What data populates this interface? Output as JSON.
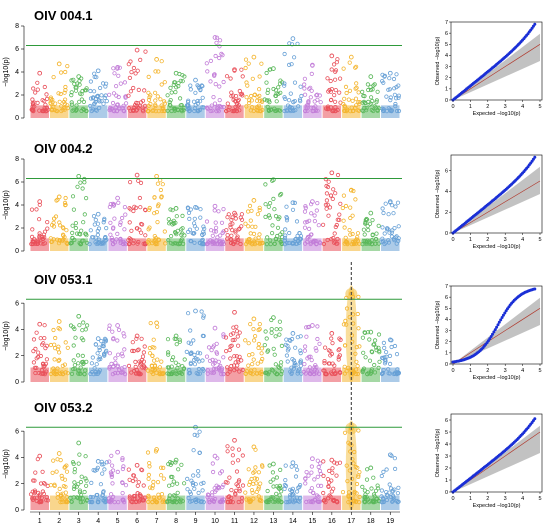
{
  "figure": {
    "panels": [
      {
        "title": "OIV 004.1",
        "ylabel": "−log10(p)",
        "yticks": [
          0,
          2,
          4,
          6,
          8
        ],
        "threshold": 6.3,
        "chrom_peaks": [
          3.9,
          4.7,
          3.6,
          4.1,
          4.4,
          5.9,
          5.1,
          3.9,
          3.3,
          7.0,
          4.2,
          5.3,
          4.3,
          6.9,
          4.6,
          5.4,
          5.3,
          3.6,
          3.9
        ],
        "highlight": null,
        "qq": {
          "max_expected": 4.7,
          "max_observed": 7.0,
          "ylim": [
            0,
            7
          ],
          "yticks": [
            0,
            1,
            2,
            3,
            4,
            5,
            6,
            7
          ],
          "shape": "linear"
        }
      },
      {
        "title": "OIV 004.2",
        "ylabel": "−log10(p)",
        "yticks": [
          0,
          2,
          4,
          6,
          8
        ],
        "threshold": 6.3,
        "chrom_peaks": [
          4.3,
          4.7,
          6.5,
          3.2,
          4.6,
          6.6,
          6.5,
          3.7,
          3.8,
          3.9,
          3.3,
          4.4,
          6.2,
          4.2,
          4.3,
          6.8,
          5.3,
          3.3,
          4.3
        ],
        "highlight": null,
        "qq": {
          "max_expected": 4.7,
          "max_observed": 7.5,
          "ylim": [
            0,
            7.5
          ],
          "yticks": [
            0,
            2,
            4,
            6
          ],
          "shape": "linear"
        }
      },
      {
        "title": "OIV 053.1",
        "ylabel": "−log10(p)",
        "yticks": [
          0,
          2,
          4,
          6
        ],
        "threshold": 6.3,
        "chrom_peaks": [
          4.4,
          4.6,
          5.0,
          3.3,
          4.3,
          3.5,
          4.5,
          3.5,
          5.4,
          4.1,
          5.3,
          4.8,
          4.9,
          3.7,
          4.3,
          3.7,
          6.7,
          3.8,
          3.2
        ],
        "highlight": 17,
        "qq": {
          "max_expected": 4.7,
          "max_observed": 7.0,
          "ylim": [
            0,
            7
          ],
          "yticks": [
            0,
            1,
            2,
            3,
            4,
            5,
            6,
            7
          ],
          "shape": "s-curve"
        }
      },
      {
        "title": "OIV 053.2",
        "ylabel": "−log10(p)",
        "yticks": [
          0,
          2,
          4,
          6
        ],
        "threshold": 6.3,
        "chrom_peaks": [
          4.1,
          4.3,
          5.1,
          3.7,
          4.4,
          3.4,
          4.6,
          3.8,
          6.3,
          4.1,
          5.3,
          4.8,
          3.5,
          3.6,
          3.9,
          3.8,
          6.2,
          3.2,
          4.2
        ],
        "highlight": 17,
        "qq": {
          "max_expected": 4.7,
          "max_observed": 6.3,
          "ylim": [
            0,
            6.5
          ],
          "yticks": [
            0,
            1,
            2,
            3,
            4,
            5,
            6
          ],
          "shape": "linear"
        }
      }
    ],
    "chromosomes": [
      "1",
      "2",
      "3",
      "4",
      "5",
      "6",
      "7",
      "8",
      "9",
      "10",
      "11",
      "12",
      "13",
      "14",
      "15",
      "16",
      "17",
      "18",
      "19"
    ],
    "qq_xticks": [
      0,
      1,
      2,
      3,
      4,
      5
    ],
    "qq_xlabel": "Expected −log10(p)",
    "qq_ylabel": "Observed −log10(p)",
    "colors": {
      "chromosomes": [
        "#e9505a",
        "#f4b52f",
        "#5bb85b",
        "#67a0d6",
        "#c27dd8",
        "#e9505a",
        "#f4b52f",
        "#5bb85b",
        "#67a0d6",
        "#c27dd8",
        "#e9505a",
        "#f4b52f",
        "#5bb85b",
        "#67a0d6",
        "#c27dd8",
        "#e9505a",
        "#f4b52f",
        "#5bb85b",
        "#67a0d6"
      ],
      "threshold": "#2e9a3a",
      "highlight": "#f4c24a",
      "qq_points": "#1a2fd6",
      "qq_line": "#b03a2e",
      "qq_band": "#9a9a9a"
    }
  },
  "chart_data": [
    {
      "type": "scatter",
      "title": "OIV 004.1",
      "ylabel": "−log10(p)",
      "categories": [
        "1",
        "2",
        "3",
        "4",
        "5",
        "6",
        "7",
        "8",
        "9",
        "10",
        "11",
        "12",
        "13",
        "14",
        "15",
        "16",
        "17",
        "18",
        "19"
      ],
      "values": [
        3.9,
        4.7,
        3.6,
        4.1,
        4.4,
        5.9,
        5.1,
        3.9,
        3.3,
        7.0,
        4.2,
        5.3,
        4.3,
        6.9,
        4.6,
        5.4,
        5.3,
        3.6,
        3.9
      ],
      "ylim": [
        0,
        8
      ]
    },
    {
      "type": "scatter",
      "title": "OIV 004.2",
      "ylabel": "−log10(p)",
      "categories": [
        "1",
        "2",
        "3",
        "4",
        "5",
        "6",
        "7",
        "8",
        "9",
        "10",
        "11",
        "12",
        "13",
        "14",
        "15",
        "16",
        "17",
        "18",
        "19"
      ],
      "values": [
        4.3,
        4.7,
        6.5,
        3.2,
        4.6,
        6.6,
        6.5,
        3.7,
        3.8,
        3.9,
        3.3,
        4.4,
        6.2,
        4.2,
        4.3,
        6.8,
        5.3,
        3.3,
        4.3
      ],
      "ylim": [
        0,
        8
      ]
    },
    {
      "type": "scatter",
      "title": "OIV 053.1",
      "ylabel": "−log10(p)",
      "categories": [
        "1",
        "2",
        "3",
        "4",
        "5",
        "6",
        "7",
        "8",
        "9",
        "10",
        "11",
        "12",
        "13",
        "14",
        "15",
        "16",
        "17",
        "18",
        "19"
      ],
      "values": [
        4.4,
        4.6,
        5.0,
        3.3,
        4.3,
        3.5,
        4.5,
        3.5,
        5.4,
        4.1,
        5.3,
        4.8,
        4.9,
        3.7,
        4.3,
        3.7,
        6.7,
        3.8,
        3.2
      ],
      "ylim": [
        0,
        7
      ]
    },
    {
      "type": "scatter",
      "title": "OIV 053.2",
      "ylabel": "−log10(p)",
      "categories": [
        "1",
        "2",
        "3",
        "4",
        "5",
        "6",
        "7",
        "8",
        "9",
        "10",
        "11",
        "12",
        "13",
        "14",
        "15",
        "16",
        "17",
        "18",
        "19"
      ],
      "values": [
        4.1,
        4.3,
        5.1,
        3.7,
        4.4,
        3.4,
        4.6,
        3.8,
        6.3,
        4.1,
        5.3,
        4.8,
        3.5,
        3.6,
        3.9,
        3.8,
        6.2,
        3.2,
        4.2
      ],
      "ylim": [
        0,
        7
      ]
    }
  ]
}
